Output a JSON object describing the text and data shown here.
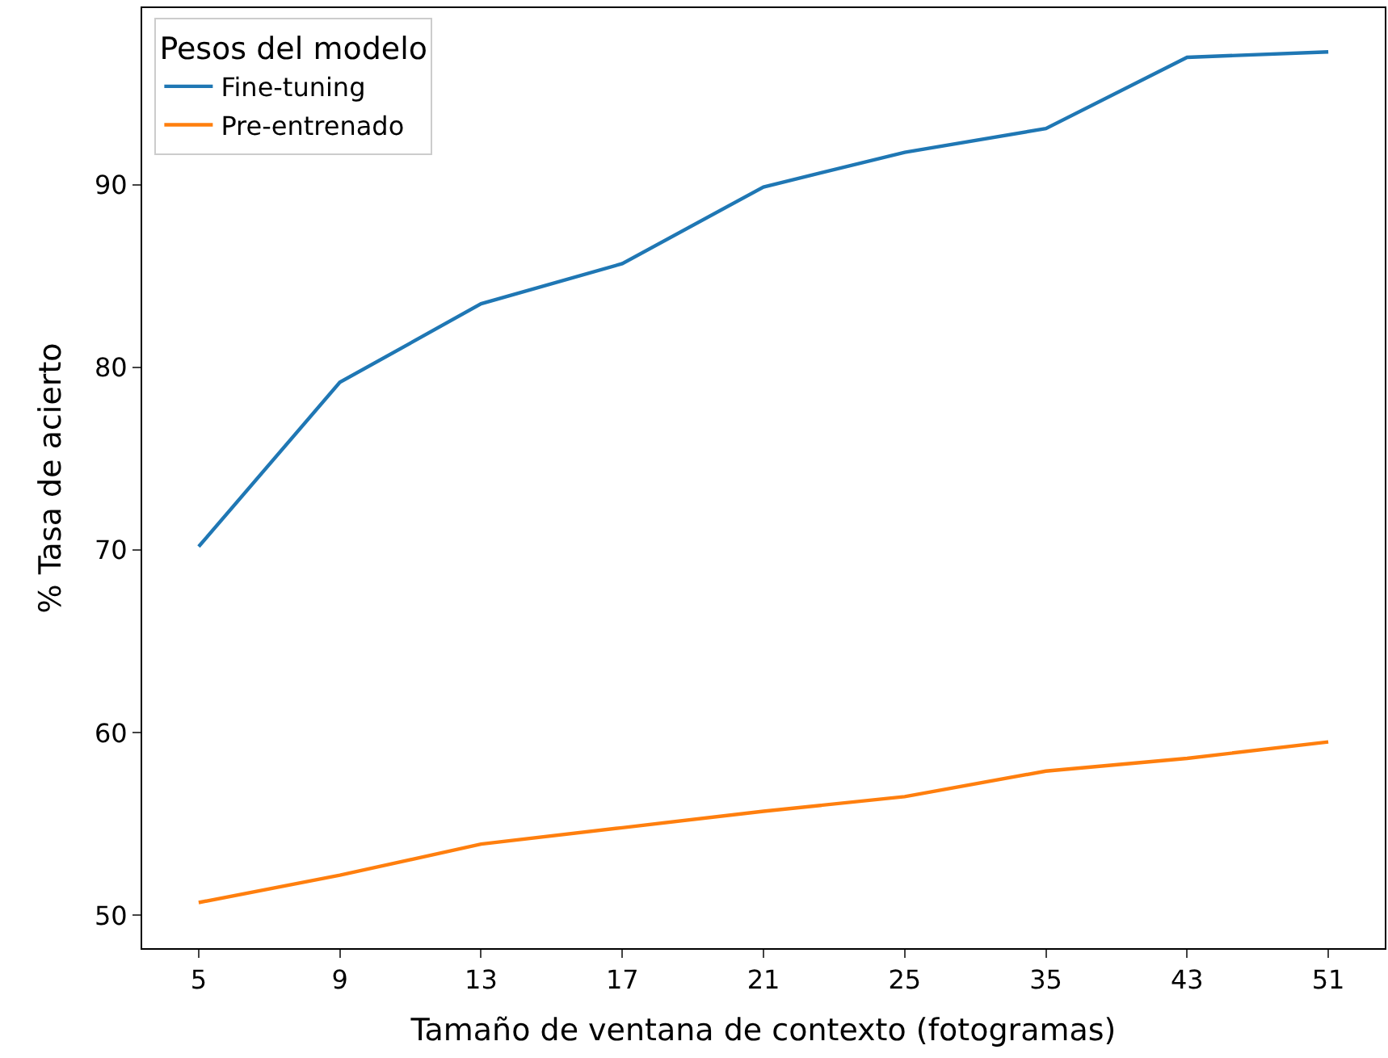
{
  "chart_data": {
    "type": "line",
    "xlabel": "Tamaño de ventana de contexto (fotogramas)",
    "ylabel": "% Tasa de acierto",
    "legend_title": "Pesos del modelo",
    "categories": [
      "5",
      "9",
      "13",
      "17",
      "21",
      "25",
      "35",
      "43",
      "51"
    ],
    "series": [
      {
        "name": "Fine-tuning",
        "color": "#1f77b4",
        "values": [
          70.2,
          79.2,
          83.5,
          85.7,
          89.9,
          91.8,
          93.1,
          97.0,
          97.3
        ]
      },
      {
        "name": "Pre-entrenado",
        "color": "#ff7f0e",
        "values": [
          50.7,
          52.2,
          53.9,
          54.8,
          55.7,
          56.5,
          57.9,
          58.6,
          59.5
        ]
      }
    ],
    "ylim": [
      48.2,
      99.7
    ],
    "yticks": [
      50,
      60,
      70,
      80,
      90
    ],
    "legend": "top left",
    "line_style": "solid",
    "marker": "none"
  }
}
